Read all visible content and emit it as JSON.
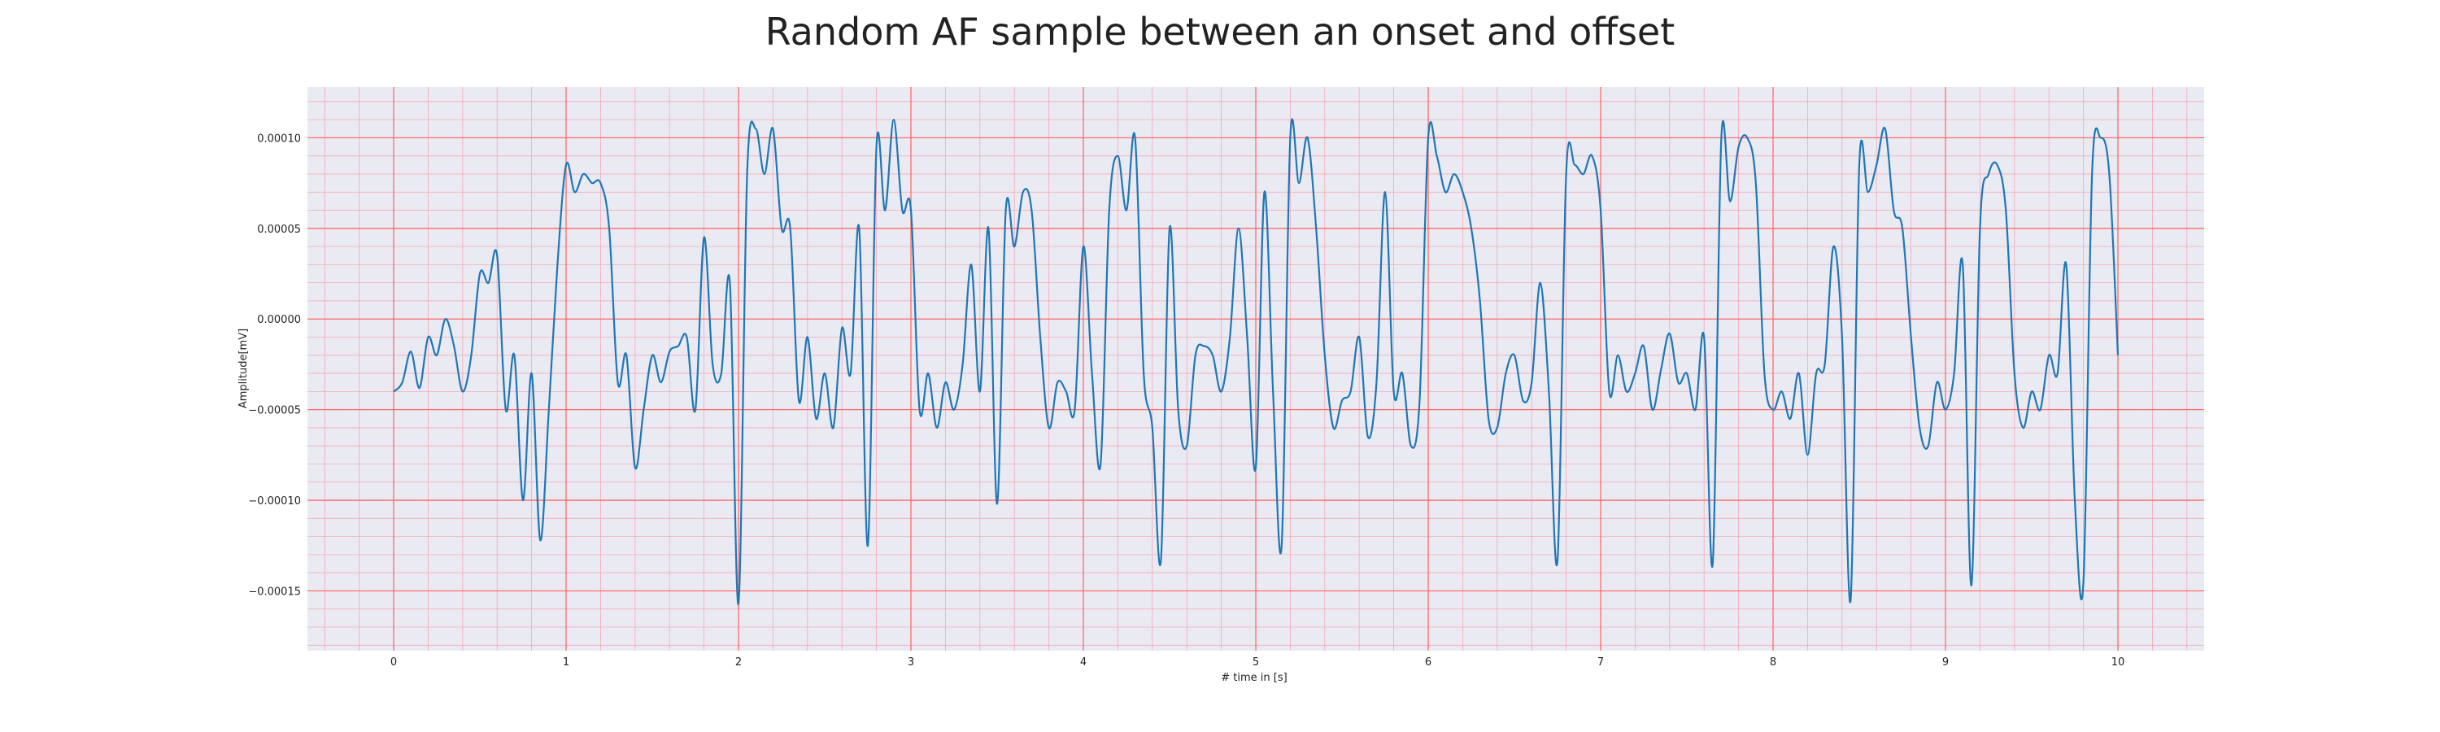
{
  "chart_data": {
    "type": "line",
    "title": "Random AF sample between an onset and offset",
    "xlabel": "# time in [s]",
    "ylabel": "Amplitude[mV]",
    "xlim": [
      -0.5,
      10.5
    ],
    "ylim": [
      -0.000183,
      0.000128
    ],
    "x_ticks": [
      0,
      1,
      2,
      3,
      4,
      5,
      6,
      7,
      8,
      9,
      10
    ],
    "x_tick_labels": [
      "0",
      "1",
      "2",
      "3",
      "4",
      "5",
      "6",
      "7",
      "8",
      "9",
      "10"
    ],
    "y_ticks": [
      0.0001,
      5e-05,
      0,
      -5e-05,
      -0.0001,
      -0.00015
    ],
    "y_tick_labels": [
      "0.00010",
      "0.00005",
      "0.00000",
      "−0.00005",
      "−0.00010",
      "−0.00015"
    ],
    "grid": true,
    "minor_grid": true,
    "colors": {
      "background": "#eaeaf2",
      "major_grid": "#ff6b6b",
      "minor_grid": "#f3a9b9",
      "line": "#1f77b4"
    },
    "series": [
      {
        "values": [
          [
            0.0,
            -4e-05
          ],
          [
            0.05,
            -3.5e-05
          ],
          [
            0.1,
            -1.8e-05
          ],
          [
            0.15,
            -3.8e-05
          ],
          [
            0.2,
            -1e-05
          ],
          [
            0.25,
            -2e-05
          ],
          [
            0.3,
            0.0
          ],
          [
            0.35,
            -1.5e-05
          ],
          [
            0.4,
            -4e-05
          ],
          [
            0.45,
            -2e-05
          ],
          [
            0.5,
            2.5e-05
          ],
          [
            0.55,
            2e-05
          ],
          [
            0.6,
            3.5e-05
          ],
          [
            0.65,
            -5e-05
          ],
          [
            0.7,
            -2e-05
          ],
          [
            0.75,
            -0.0001
          ],
          [
            0.8,
            -3e-05
          ],
          [
            0.85,
            -0.000122
          ],
          [
            0.9,
            -5e-05
          ],
          [
            0.95,
            3e-05
          ],
          [
            1.0,
            8.5e-05
          ],
          [
            1.05,
            7e-05
          ],
          [
            1.1,
            8e-05
          ],
          [
            1.15,
            7.5e-05
          ],
          [
            1.2,
            7.5e-05
          ],
          [
            1.25,
            5e-05
          ],
          [
            1.3,
            -3.5e-05
          ],
          [
            1.35,
            -2e-05
          ],
          [
            1.4,
            -8.2e-05
          ],
          [
            1.45,
            -5e-05
          ],
          [
            1.5,
            -2e-05
          ],
          [
            1.55,
            -3.5e-05
          ],
          [
            1.6,
            -1.8e-05
          ],
          [
            1.65,
            -1.5e-05
          ],
          [
            1.7,
            -1e-05
          ],
          [
            1.75,
            -5e-05
          ],
          [
            1.8,
            4.5e-05
          ],
          [
            1.85,
            -2.5e-05
          ],
          [
            1.9,
            -3e-05
          ],
          [
            1.95,
            2e-05
          ],
          [
            2.0,
            -0.000157
          ],
          [
            2.05,
            8e-05
          ],
          [
            2.1,
            0.000105
          ],
          [
            2.15,
            8e-05
          ],
          [
            2.2,
            0.000105
          ],
          [
            2.25,
            5e-05
          ],
          [
            2.3,
            5e-05
          ],
          [
            2.35,
            -4.5e-05
          ],
          [
            2.4,
            -1e-05
          ],
          [
            2.45,
            -5.5e-05
          ],
          [
            2.5,
            -3e-05
          ],
          [
            2.55,
            -6e-05
          ],
          [
            2.6,
            -5e-06
          ],
          [
            2.65,
            -3e-05
          ],
          [
            2.7,
            5e-05
          ],
          [
            2.75,
            -0.000125
          ],
          [
            2.8,
            9.5e-05
          ],
          [
            2.85,
            6e-05
          ],
          [
            2.9,
            0.00011
          ],
          [
            2.95,
            6e-05
          ],
          [
            3.0,
            6e-05
          ],
          [
            3.05,
            -5e-05
          ],
          [
            3.1,
            -3e-05
          ],
          [
            3.15,
            -6e-05
          ],
          [
            3.2,
            -3.5e-05
          ],
          [
            3.25,
            -5e-05
          ],
          [
            3.3,
            -2.5e-05
          ],
          [
            3.35,
            3e-05
          ],
          [
            3.4,
            -4e-05
          ],
          [
            3.45,
            5e-05
          ],
          [
            3.5,
            -0.000102
          ],
          [
            3.55,
            6e-05
          ],
          [
            3.6,
            4e-05
          ],
          [
            3.65,
            7e-05
          ],
          [
            3.7,
            6e-05
          ],
          [
            3.75,
            -1e-05
          ],
          [
            3.8,
            -6e-05
          ],
          [
            3.85,
            -3.5e-05
          ],
          [
            3.9,
            -4e-05
          ],
          [
            3.95,
            -5e-05
          ],
          [
            4.0,
            4e-05
          ],
          [
            4.05,
            -3e-05
          ],
          [
            4.1,
            -8e-05
          ],
          [
            4.15,
            6e-05
          ],
          [
            4.2,
            9e-05
          ],
          [
            4.25,
            6e-05
          ],
          [
            4.3,
            0.0001
          ],
          [
            4.35,
            -3e-05
          ],
          [
            4.4,
            -6e-05
          ],
          [
            4.45,
            -0.000133
          ],
          [
            4.5,
            5e-05
          ],
          [
            4.55,
            -5e-05
          ],
          [
            4.6,
            -7e-05
          ],
          [
            4.65,
            -2e-05
          ],
          [
            4.7,
            -1.5e-05
          ],
          [
            4.75,
            -2e-05
          ],
          [
            4.8,
            -4e-05
          ],
          [
            4.85,
            -1e-05
          ],
          [
            4.9,
            5e-05
          ],
          [
            4.95,
            -1e-05
          ],
          [
            5.0,
            -8.2e-05
          ],
          [
            5.05,
            7e-05
          ],
          [
            5.1,
            -4e-05
          ],
          [
            5.15,
            -0.000125
          ],
          [
            5.2,
            0.0001
          ],
          [
            5.25,
            7.5e-05
          ],
          [
            5.3,
            0.0001
          ],
          [
            5.35,
            5e-05
          ],
          [
            5.4,
            -2e-05
          ],
          [
            5.45,
            -6e-05
          ],
          [
            5.5,
            -4.5e-05
          ],
          [
            5.55,
            -4e-05
          ],
          [
            5.6,
            -1e-05
          ],
          [
            5.65,
            -6.5e-05
          ],
          [
            5.7,
            -3.5e-05
          ],
          [
            5.75,
            7e-05
          ],
          [
            5.8,
            -4e-05
          ],
          [
            5.85,
            -3e-05
          ],
          [
            5.9,
            -7e-05
          ],
          [
            5.95,
            -4.5e-05
          ],
          [
            6.0,
            0.0001
          ],
          [
            6.05,
            9e-05
          ],
          [
            6.1,
            7e-05
          ],
          [
            6.15,
            8e-05
          ],
          [
            6.2,
            7e-05
          ],
          [
            6.25,
            5e-05
          ],
          [
            6.3,
            1e-05
          ],
          [
            6.35,
            -5.5e-05
          ],
          [
            6.4,
            -6e-05
          ],
          [
            6.45,
            -3e-05
          ],
          [
            6.5,
            -2e-05
          ],
          [
            6.55,
            -4.5e-05
          ],
          [
            6.6,
            -3.5e-05
          ],
          [
            6.65,
            2e-05
          ],
          [
            6.7,
            -4e-05
          ],
          [
            6.75,
            -0.000133
          ],
          [
            6.8,
            8e-05
          ],
          [
            6.85,
            8.5e-05
          ],
          [
            6.9,
            8e-05
          ],
          [
            6.95,
            9e-05
          ],
          [
            7.0,
            6e-05
          ],
          [
            7.05,
            -4e-05
          ],
          [
            7.1,
            -2e-05
          ],
          [
            7.15,
            -4e-05
          ],
          [
            7.2,
            -3e-05
          ],
          [
            7.25,
            -1.5e-05
          ],
          [
            7.3,
            -5e-05
          ],
          [
            7.35,
            -2.8e-05
          ],
          [
            7.4,
            -8e-06
          ],
          [
            7.45,
            -3.5e-05
          ],
          [
            7.5,
            -3e-05
          ],
          [
            7.55,
            -5e-05
          ],
          [
            7.6,
            -1e-05
          ],
          [
            7.65,
            -0.000135
          ],
          [
            7.7,
            0.0001
          ],
          [
            7.75,
            6.5e-05
          ],
          [
            7.8,
            9.5e-05
          ],
          [
            7.85,
            0.0001
          ],
          [
            7.9,
            7.5e-05
          ],
          [
            7.95,
            -3e-05
          ],
          [
            8.0,
            -5e-05
          ],
          [
            8.05,
            -4e-05
          ],
          [
            8.1,
            -5.5e-05
          ],
          [
            8.15,
            -3e-05
          ],
          [
            8.2,
            -7.5e-05
          ],
          [
            8.25,
            -3e-05
          ],
          [
            8.3,
            -2.5e-05
          ],
          [
            8.35,
            4e-05
          ],
          [
            8.4,
            -1e-05
          ],
          [
            8.45,
            -0.000155
          ],
          [
            8.5,
            8.5e-05
          ],
          [
            8.55,
            7e-05
          ],
          [
            8.6,
            8.5e-05
          ],
          [
            8.65,
            0.000105
          ],
          [
            8.7,
            6e-05
          ],
          [
            8.75,
            5e-05
          ],
          [
            8.8,
            -1e-05
          ],
          [
            8.85,
            -6e-05
          ],
          [
            8.9,
            -7e-05
          ],
          [
            8.95,
            -3.5e-05
          ],
          [
            9.0,
            -5e-05
          ],
          [
            9.05,
            -3e-05
          ],
          [
            9.1,
            3e-05
          ],
          [
            9.15,
            -0.000147
          ],
          [
            9.2,
            5e-05
          ],
          [
            9.25,
            8e-05
          ],
          [
            9.3,
            8.5e-05
          ],
          [
            9.35,
            6e-05
          ],
          [
            9.4,
            -3e-05
          ],
          [
            9.45,
            -6e-05
          ],
          [
            9.5,
            -4e-05
          ],
          [
            9.55,
            -5e-05
          ],
          [
            9.6,
            -2e-05
          ],
          [
            9.65,
            -3e-05
          ],
          [
            9.7,
            3e-05
          ],
          [
            9.75,
            -0.0001
          ],
          [
            9.8,
            -0.000145
          ],
          [
            9.85,
            8e-05
          ],
          [
            9.9,
            0.0001
          ],
          [
            9.95,
            8e-05
          ],
          [
            10.0,
            -2e-05
          ]
        ]
      }
    ]
  }
}
